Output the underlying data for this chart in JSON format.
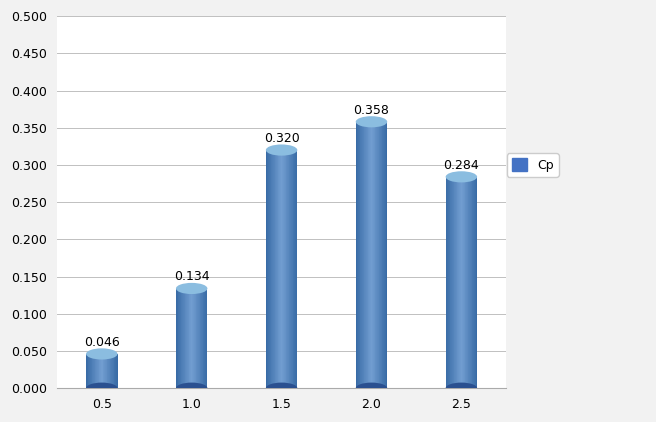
{
  "categories": [
    "0.5",
    "1.0",
    "1.5",
    "2.0",
    "2.5"
  ],
  "values": [
    0.046,
    0.134,
    0.32,
    0.358,
    0.284
  ],
  "bar_color_left": "#3A6DAE",
  "bar_color_mid": "#5B8DD4",
  "bar_color_right": "#3A6DAE",
  "bar_color_top": "#7AAEE0",
  "bar_color_bottom_dark": "#2A5090",
  "bar_width": 0.35,
  "ylim": [
    0.0,
    0.5
  ],
  "yticks": [
    0.0,
    0.05,
    0.1,
    0.15,
    0.2,
    0.25,
    0.3,
    0.35,
    0.4,
    0.45,
    0.5
  ],
  "legend_label": "Cp",
  "label_fontsize": 9,
  "tick_fontsize": 9,
  "background_color": "#F2F2F2",
  "plot_bg_color": "#FFFFFF",
  "grid_color": "#C0C0C0",
  "value_labels": [
    "0.046",
    "0.134",
    "0.320",
    "0.358",
    "0.284"
  ]
}
